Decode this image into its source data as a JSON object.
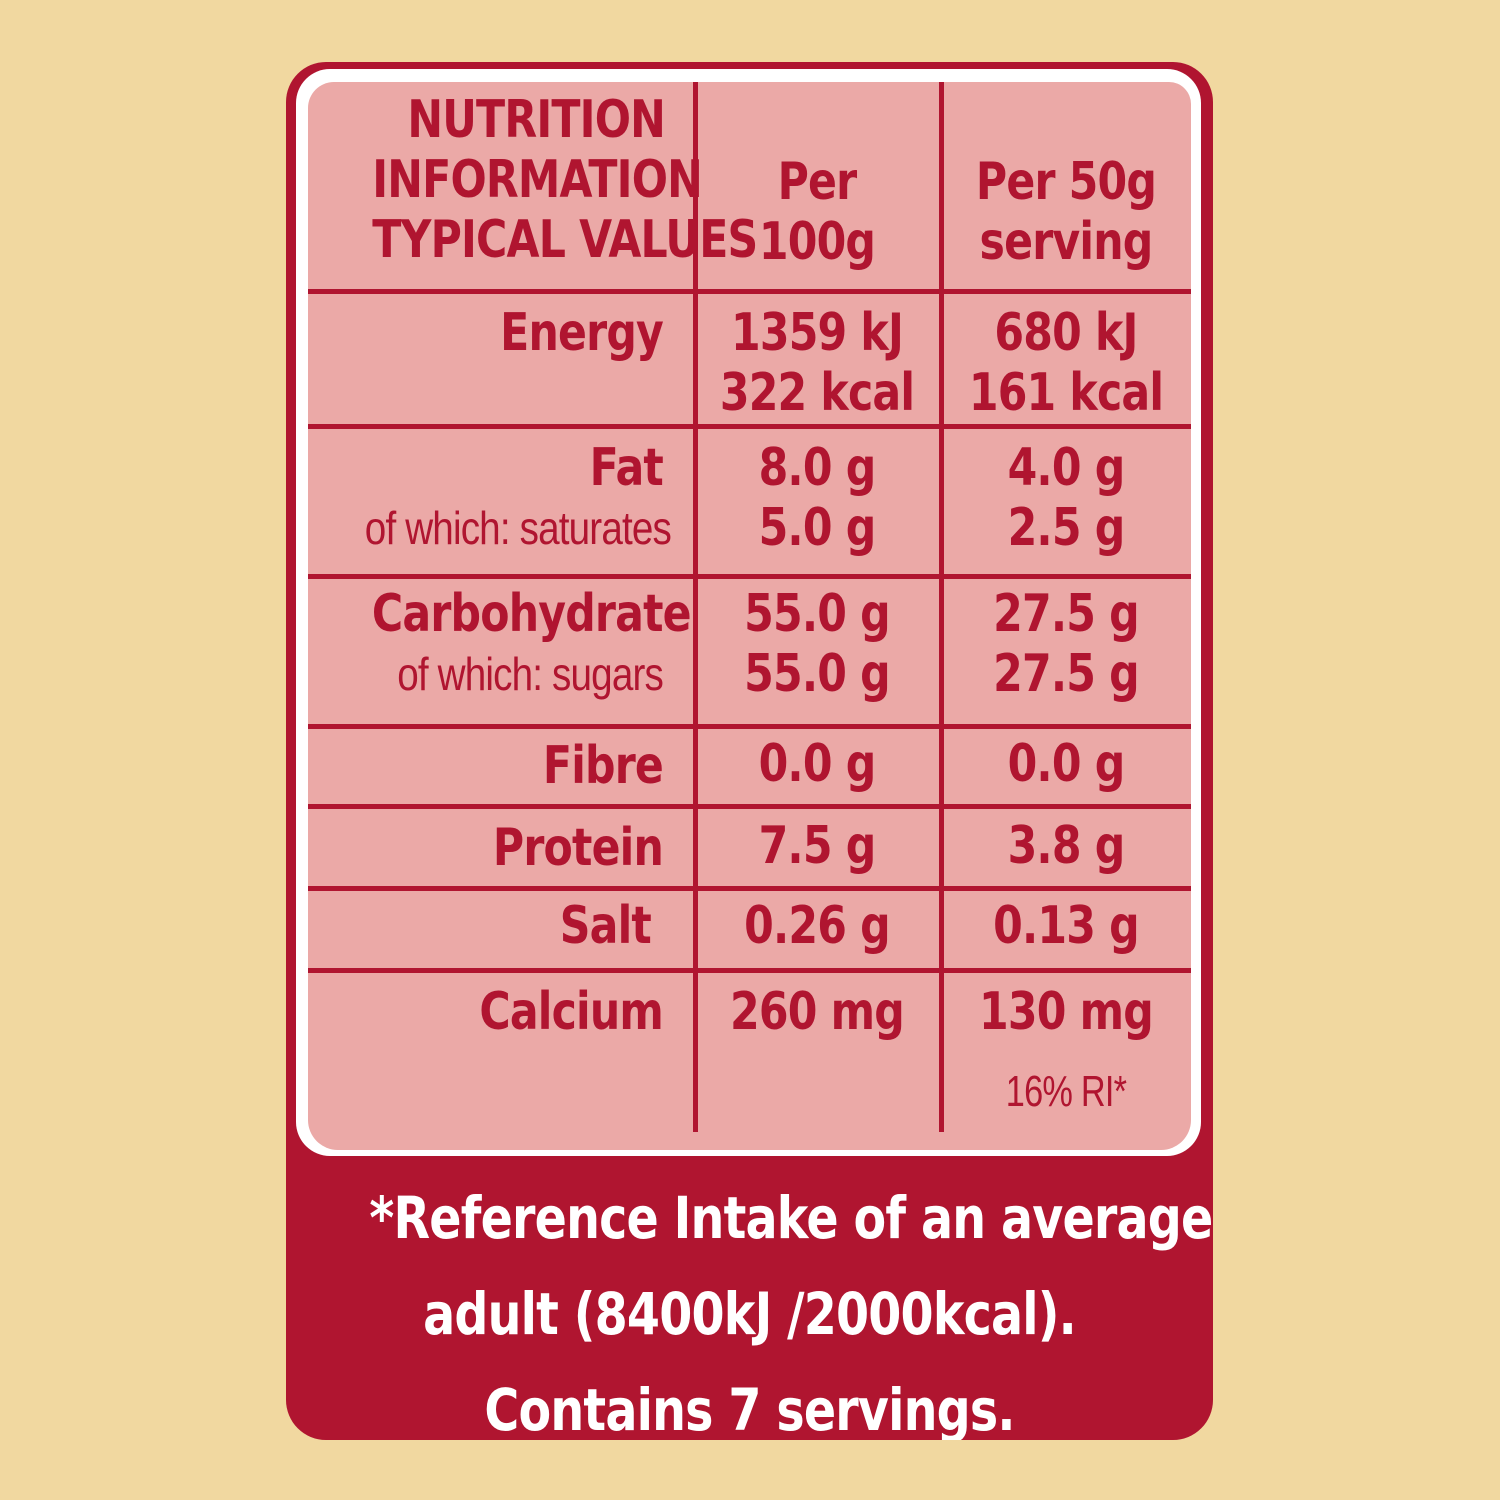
{
  "header": {
    "title_lines": [
      "NUTRITION",
      "INFORMATION",
      "TYPICAL VALUES"
    ],
    "col_per100_lines": [
      "Per",
      "100g"
    ],
    "col_per50_lines": [
      "Per 50g",
      "serving"
    ]
  },
  "rows": [
    {
      "label": [
        "Energy"
      ],
      "sub": [],
      "per100": [
        "1359 kJ",
        "322 kcal"
      ],
      "per50": [
        "680 kJ",
        "161 kcal"
      ]
    },
    {
      "label": [
        "Fat"
      ],
      "sub": [
        "of which: saturates"
      ],
      "per100": [
        "8.0 g",
        "5.0 g"
      ],
      "per50": [
        "4.0 g",
        "2.5 g"
      ]
    },
    {
      "label": [
        "Carbohydrate"
      ],
      "sub": [
        "of which: sugars"
      ],
      "per100": [
        "55.0 g",
        "55.0 g"
      ],
      "per50": [
        "27.5 g",
        "27.5 g"
      ]
    },
    {
      "label": [
        "Fibre"
      ],
      "sub": [],
      "per100": [
        "0.0 g"
      ],
      "per50": [
        "0.0 g"
      ]
    },
    {
      "label": [
        "Protein"
      ],
      "sub": [],
      "per100": [
        "7.5 g"
      ],
      "per50": [
        "3.8 g"
      ]
    },
    {
      "label": [
        "Salt"
      ],
      "sub": [],
      "per100": [
        "0.26 g"
      ],
      "per50": [
        "0.13 g"
      ]
    },
    {
      "label": [
        "Calcium"
      ],
      "sub": [],
      "per100": [
        "260 mg"
      ],
      "per50": [
        "130 mg"
      ],
      "per50_note": "16% RI*"
    }
  ],
  "footnote": {
    "lines": [
      "*Reference Intake of an average",
      "adult (8400kJ /2000kcal).",
      "Contains 7 servings."
    ]
  },
  "colors": {
    "background": "#f1d8a0",
    "brand_red": "#b01530",
    "panel_pink": "#eba9a7",
    "text_on_red": "#ffffff"
  }
}
